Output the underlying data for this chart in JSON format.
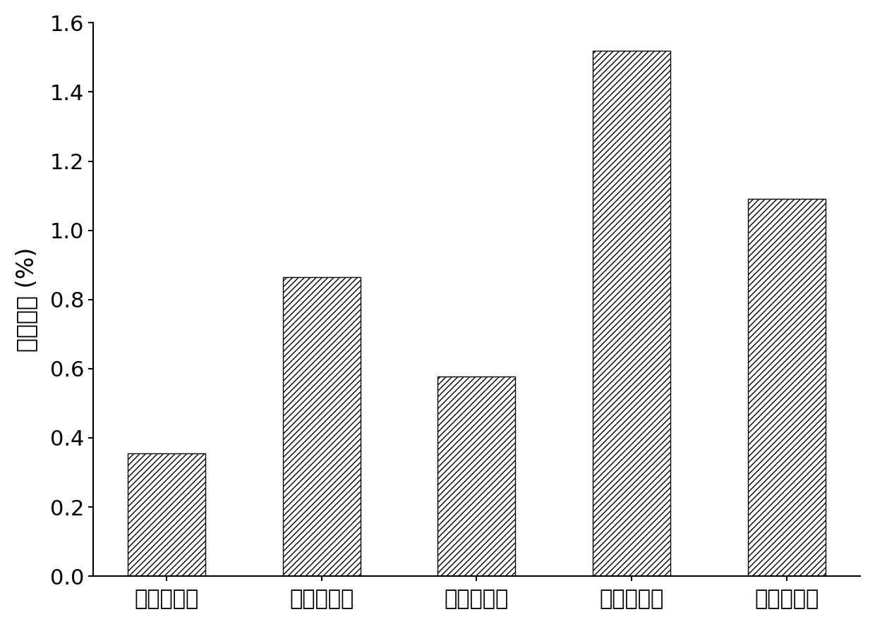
{
  "categories": [
    "对比方法一",
    "对比方法二",
    "对比方法三",
    "对比方法四",
    "本发明方法"
  ],
  "values": [
    0.355,
    0.865,
    0.577,
    1.52,
    1.09
  ],
  "ylabel": "破坏应变 (%)",
  "ylim": [
    0,
    1.6
  ],
  "yticks": [
    0.0,
    0.2,
    0.4,
    0.6,
    0.8,
    1.0,
    1.2,
    1.4,
    1.6
  ],
  "bar_color": "#ffffff",
  "bar_edgecolor": "#000000",
  "hatch": "////",
  "bar_width": 0.5,
  "figsize": [
    12.4,
    8.85
  ],
  "dpi": 100,
  "tick_fontsize": 22,
  "label_fontsize": 24
}
